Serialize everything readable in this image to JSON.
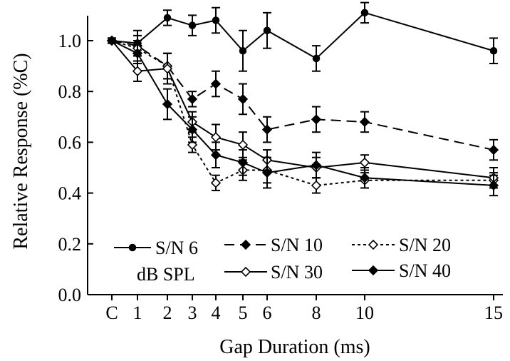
{
  "chart_data": {
    "type": "line",
    "xlabel": "Gap Duration (ms)",
    "ylabel": "Relative Response (%C)",
    "ylim": [
      0,
      1.1
    ],
    "yticks": [
      "0.0",
      "0.2",
      "0.4",
      "0.6",
      "0.8",
      "1.0"
    ],
    "x_ticks": [
      "C",
      "1",
      "2",
      "3",
      "4",
      "5",
      "6",
      "8",
      "10",
      "15"
    ],
    "legend_note": "dB SPL",
    "series": [
      {
        "name": "S/N 6",
        "marker": "filled-circle",
        "line": "solid",
        "values": [
          1.0,
          0.99,
          1.09,
          1.06,
          1.08,
          0.96,
          1.04,
          0.93,
          1.11,
          0.96
        ],
        "errors": [
          0.01,
          0.05,
          0.03,
          0.04,
          0.05,
          0.08,
          0.07,
          0.05,
          0.04,
          0.05
        ]
      },
      {
        "name": "S/N 10",
        "marker": "filled-diamond",
        "line": "dashed",
        "values": [
          1.0,
          0.98,
          0.9,
          0.77,
          0.83,
          0.77,
          0.65,
          0.69,
          0.68,
          0.57
        ],
        "errors": [
          0.01,
          0.04,
          0.05,
          0.03,
          0.05,
          0.06,
          0.05,
          0.05,
          0.04,
          0.04
        ]
      },
      {
        "name": "S/N 20",
        "marker": "open-diamond",
        "line": "dotted",
        "values": [
          1.0,
          0.97,
          0.9,
          0.59,
          0.44,
          0.49,
          0.49,
          0.43,
          0.45,
          0.45
        ],
        "errors": [
          0.01,
          0.03,
          0.05,
          0.03,
          0.03,
          0.04,
          0.05,
          0.03,
          0.03,
          0.03
        ]
      },
      {
        "name": "S/N 30",
        "marker": "open-diamond",
        "line": "solid",
        "values": [
          1.0,
          0.88,
          0.89,
          0.68,
          0.62,
          0.59,
          0.53,
          0.5,
          0.52,
          0.46
        ],
        "errors": [
          0.01,
          0.04,
          0.06,
          0.04,
          0.05,
          0.05,
          0.04,
          0.04,
          0.03,
          0.04
        ]
      },
      {
        "name": "S/N 40",
        "marker": "filled-diamond",
        "line": "solid",
        "values": [
          1.0,
          0.95,
          0.75,
          0.65,
          0.55,
          0.52,
          0.48,
          0.51,
          0.46,
          0.43
        ],
        "errors": [
          0.01,
          0.04,
          0.06,
          0.05,
          0.05,
          0.05,
          0.06,
          0.05,
          0.04,
          0.04
        ]
      }
    ]
  }
}
